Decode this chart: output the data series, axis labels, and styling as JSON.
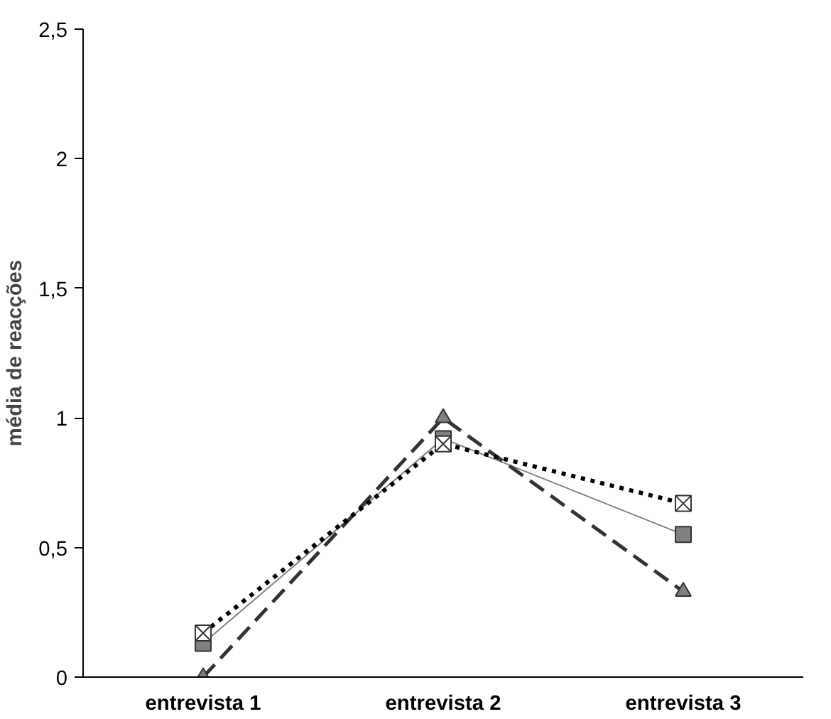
{
  "chart_data": {
    "type": "line",
    "ylabel": "média de reacções",
    "categories": [
      "entrevista 1",
      "entrevista 2",
      "entrevista 3"
    ],
    "ylim": [
      0,
      2.5
    ],
    "yticks": [
      {
        "value": 0,
        "label": "0"
      },
      {
        "value": 0.5,
        "label": "0,5"
      },
      {
        "value": 1,
        "label": "1"
      },
      {
        "value": 1.5,
        "label": "1,5"
      },
      {
        "value": 2,
        "label": "2"
      },
      {
        "value": 2.5,
        "label": "2,5"
      }
    ],
    "series": [
      {
        "color": "#808080",
        "marker": "square",
        "line_style": "solid",
        "values": [
          0.13,
          0.92,
          0.55
        ]
      },
      {
        "color": "#808080",
        "marker": "triangle",
        "line_style": "dashed",
        "values": [
          0,
          1.0,
          0.33
        ]
      },
      {
        "color": "#000000",
        "marker": "cross",
        "line_style": "dotted",
        "values": [
          0.17,
          0.9,
          0.67
        ]
      }
    ]
  }
}
